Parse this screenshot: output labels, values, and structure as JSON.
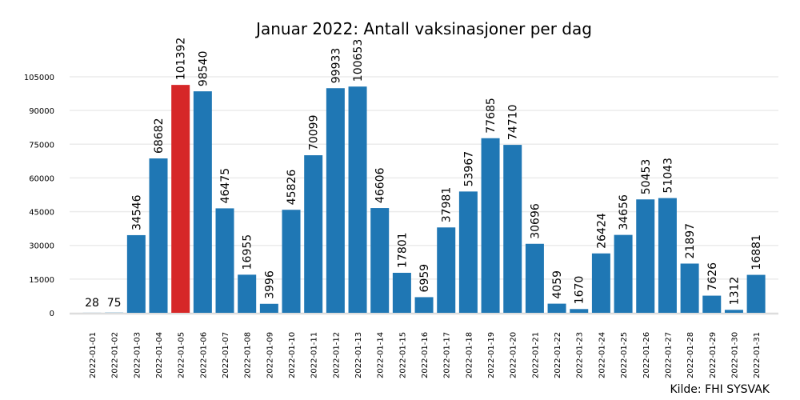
{
  "chart_data": {
    "type": "bar",
    "title": "Januar 2022: Antall vaksinasjoner per dag",
    "source": "Kilde: FHI SYSVAK",
    "xlabel": "",
    "ylabel": "",
    "ylim": [
      0,
      110000
    ],
    "yticks": [
      0,
      15000,
      30000,
      45000,
      60000,
      75000,
      90000,
      105000
    ],
    "grid": true,
    "colors": {
      "bar": "#1f77b4",
      "highlight": "#d62728",
      "grid": "#ebebeb",
      "baseline": "#dddddd"
    },
    "highlight_category": "2022-01-05",
    "categories": [
      "2022-01-01",
      "2022-01-02",
      "2022-01-03",
      "2022-01-04",
      "2022-01-05",
      "2022-01-06",
      "2022-01-07",
      "2022-01-08",
      "2022-01-09",
      "2022-01-10",
      "2022-01-11",
      "2022-01-12",
      "2022-01-13",
      "2022-01-14",
      "2022-01-15",
      "2022-01-16",
      "2022-01-17",
      "2022-01-18",
      "2022-01-19",
      "2022-01-20",
      "2022-01-21",
      "2022-01-22",
      "2022-01-23",
      "2022-01-24",
      "2022-01-25",
      "2022-01-26",
      "2022-01-27",
      "2022-01-28",
      "2022-01-29",
      "2022-01-30",
      "2022-01-31"
    ],
    "values": [
      28,
      75,
      34546,
      68682,
      101392,
      98540,
      46475,
      16955,
      3996,
      45826,
      70099,
      99933,
      100653,
      46606,
      17801,
      6959,
      37981,
      53967,
      77685,
      74710,
      30696,
      4059,
      1670,
      26424,
      34656,
      50453,
      51043,
      21897,
      7626,
      1312,
      16881
    ]
  }
}
